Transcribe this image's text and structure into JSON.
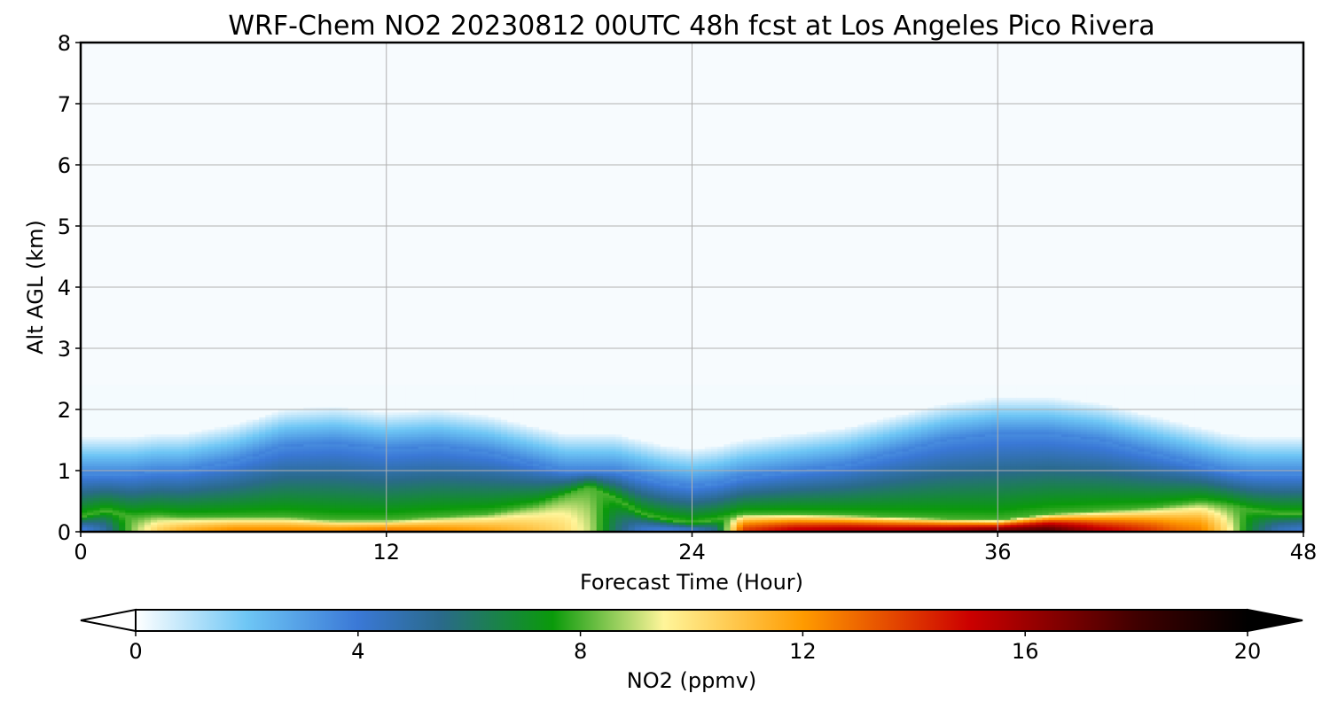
{
  "chart_data": {
    "type": "heatmap",
    "title": "WRF-Chem NO2  20230812 00UTC 48h fcst at Los Angeles Pico Rivera",
    "xlabel": "Forecast Time (Hour)",
    "ylabel": "Alt AGL (km)",
    "xlim": [
      0,
      48
    ],
    "ylim": [
      0,
      8
    ],
    "x_ticks": [
      "0",
      "12",
      "24",
      "36",
      "48"
    ],
    "y_ticks": [
      "0",
      "1",
      "2",
      "3",
      "4",
      "5",
      "6",
      "7",
      "8"
    ],
    "grid": true,
    "colorbar": {
      "label": "NO2  (ppmv)",
      "range": [
        0,
        20
      ],
      "ticks": [
        "0",
        "4",
        "8",
        "12",
        "16",
        "20"
      ],
      "extend": "both",
      "placement": "bottom",
      "color_stops": [
        [
          0,
          "#ffffff"
        ],
        [
          2,
          "#6ec6f5"
        ],
        [
          4,
          "#3a78d6"
        ],
        [
          5.5,
          "#2a6a8a"
        ],
        [
          7.5,
          "#0a9a0a"
        ],
        [
          9.5,
          "#fff59a"
        ],
        [
          12,
          "#ff9b00"
        ],
        [
          15,
          "#cc0000"
        ],
        [
          18,
          "#400000"
        ],
        [
          20,
          "#000000"
        ]
      ]
    },
    "profile": {
      "hours": [
        0,
        1,
        2,
        3,
        4,
        6,
        8,
        10,
        12,
        14,
        16,
        18,
        19,
        20,
        21,
        22,
        23,
        24,
        25,
        26,
        28,
        30,
        32,
        34,
        36,
        38,
        40,
        42,
        43,
        44,
        45,
        46,
        47,
        48
      ],
      "surface_ppmv": [
        3.5,
        5.0,
        8.5,
        10.5,
        11.5,
        12.5,
        12.5,
        12.5,
        13.0,
        12.5,
        11.8,
        10.8,
        10.2,
        9.0,
        6.0,
        4.0,
        3.5,
        3.8,
        5.5,
        14.0,
        15.5,
        16.0,
        16.0,
        16.5,
        17.5,
        18.0,
        15.5,
        14.0,
        13.0,
        12.5,
        10.0,
        6.5,
        4.5,
        4.0
      ],
      "layer_top_km": [
        0.25,
        0.35,
        0.25,
        0.28,
        0.25,
        0.25,
        0.25,
        0.2,
        0.2,
        0.25,
        0.3,
        0.45,
        0.6,
        0.75,
        0.55,
        0.3,
        0.2,
        0.15,
        0.2,
        0.3,
        0.3,
        0.28,
        0.25,
        0.22,
        0.2,
        0.3,
        0.35,
        0.4,
        0.45,
        0.5,
        0.45,
        0.35,
        0.3,
        0.3
      ],
      "boundary_top_km": [
        0.95,
        0.95,
        0.95,
        1.0,
        1.0,
        1.15,
        1.4,
        1.45,
        1.35,
        1.4,
        1.3,
        1.1,
        1.0,
        1.0,
        1.0,
        0.9,
        0.8,
        0.75,
        0.8,
        0.9,
        1.0,
        1.1,
        1.3,
        1.5,
        1.6,
        1.6,
        1.5,
        1.3,
        1.2,
        1.1,
        1.0,
        0.95,
        0.95,
        0.95
      ]
    }
  }
}
